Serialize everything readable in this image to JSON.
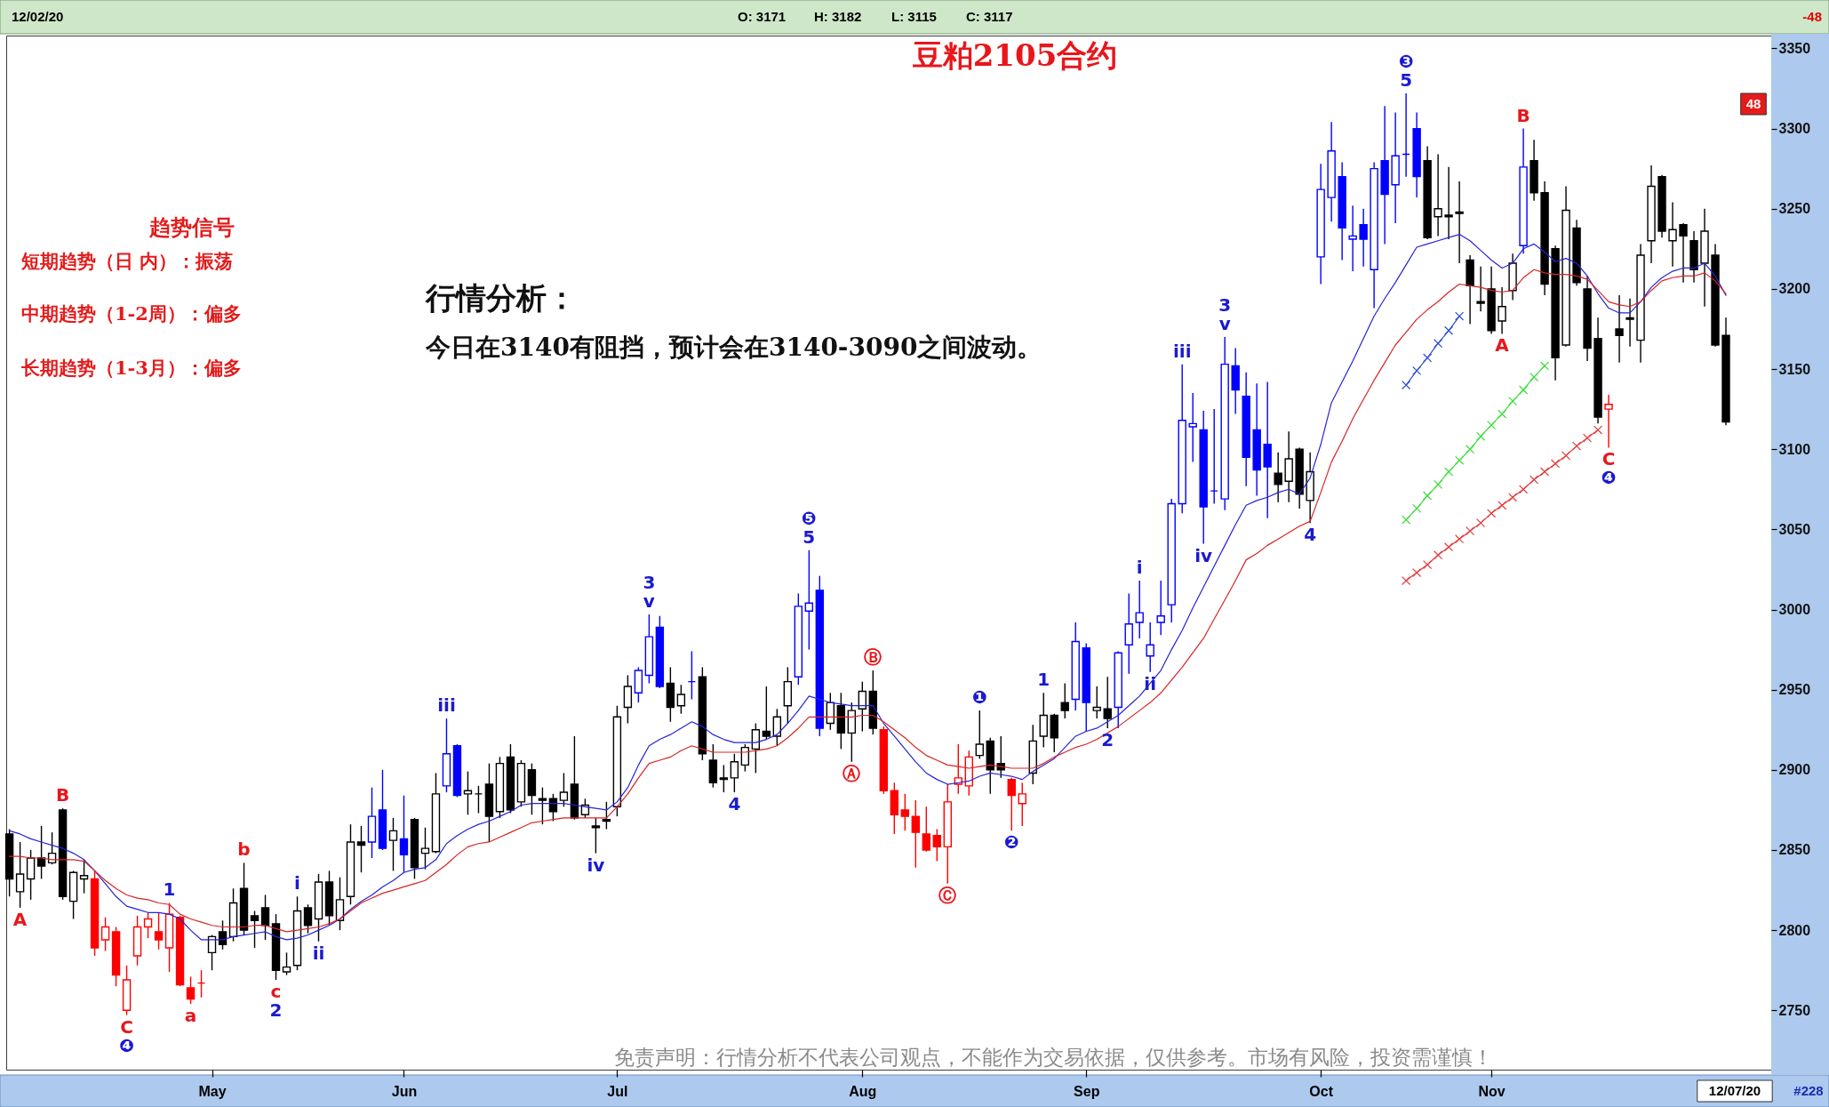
{
  "chart_data": {
    "type": "candlestick",
    "title": "豆粕2105合约",
    "categories": [
      null,
      null,
      null,
      null,
      null,
      null,
      null,
      null,
      null,
      null,
      null,
      null,
      null,
      null,
      null,
      null,
      null,
      null,
      null,
      "May",
      null,
      null,
      null,
      null,
      null,
      null,
      null,
      null,
      null,
      null,
      null,
      null,
      null,
      null,
      null,
      null,
      null,
      "Jun",
      null,
      null,
      null,
      null,
      null,
      null,
      null,
      null,
      null,
      null,
      null,
      null,
      null,
      null,
      null,
      null,
      null,
      null,
      null,
      "Jul",
      null,
      null,
      null,
      null,
      null,
      null,
      null,
      null,
      null,
      null,
      null,
      null,
      null,
      null,
      null,
      null,
      null,
      null,
      null,
      null,
      null,
      null,
      "Aug",
      null,
      null,
      null,
      null,
      null,
      null,
      null,
      null,
      null,
      null,
      null,
      null,
      null,
      null,
      null,
      null,
      null,
      null,
      null,
      null,
      "Sep",
      null,
      null,
      null,
      null,
      null,
      null,
      null,
      null,
      null,
      null,
      null,
      null,
      null,
      null,
      null,
      null,
      null,
      null,
      null,
      null,
      null,
      "Oct",
      null,
      null,
      null,
      null,
      null,
      null,
      null,
      null,
      null,
      null,
      null,
      null,
      null,
      null,
      null,
      "Nov",
      null,
      null,
      null,
      null,
      null,
      null,
      null,
      null,
      null,
      null,
      null,
      null,
      null,
      null,
      null,
      null,
      null,
      null,
      null,
      null,
      null,
      null
    ],
    "ohlc": [
      [
        2860,
        2863,
        2821,
        2832
      ],
      [
        2824,
        2855,
        2814,
        2835
      ],
      [
        2832,
        2850,
        2819,
        2845
      ],
      [
        2845,
        2865,
        2832,
        2840
      ],
      [
        2842,
        2861,
        2841,
        2848
      ],
      [
        2875,
        2876,
        2819,
        2821
      ],
      [
        2818,
        2837,
        2807,
        2836
      ],
      [
        2832,
        2844,
        2823,
        2834
      ],
      [
        2832,
        2837,
        2784,
        2789
      ],
      [
        2794,
        2808,
        2787,
        2802
      ],
      [
        2799,
        2802,
        2765,
        2772
      ],
      [
        2750,
        2778,
        2747,
        2769
      ],
      [
        2784,
        2809,
        2778,
        2802
      ],
      [
        2802,
        2811,
        2795,
        2807
      ],
      [
        2799,
        2811,
        2788,
        2794
      ],
      [
        2789,
        2817,
        2774,
        2810
      ],
      [
        2808,
        2809,
        2765,
        2766
      ],
      [
        2764,
        2771,
        2754,
        2757
      ],
      [
        2767,
        2775,
        2758,
        2767
      ],
      [
        2786,
        2797,
        2775,
        2796
      ],
      [
        2799,
        2806,
        2788,
        2791
      ],
      [
        2796,
        2826,
        2793,
        2817
      ],
      [
        2826,
        2842,
        2797,
        2800
      ],
      [
        2809,
        2812,
        2789,
        2806
      ],
      [
        2814,
        2822,
        2794,
        2803
      ],
      [
        2804,
        2810,
        2769,
        2775
      ],
      [
        2774,
        2786,
        2772,
        2777
      ],
      [
        2778,
        2821,
        2775,
        2812
      ],
      [
        2814,
        2816,
        2798,
        2803
      ],
      [
        2807,
        2835,
        2793,
        2830
      ],
      [
        2830,
        2837,
        2803,
        2809
      ],
      [
        2806,
        2833,
        2800,
        2819
      ],
      [
        2821,
        2866,
        2816,
        2855
      ],
      [
        2855,
        2865,
        2836,
        2853
      ],
      [
        2855,
        2889,
        2845,
        2871
      ],
      [
        2875,
        2900,
        2850,
        2851
      ],
      [
        2856,
        2870,
        2837,
        2862
      ],
      [
        2857,
        2884,
        2836,
        2847
      ],
      [
        2869,
        2870,
        2832,
        2839
      ],
      [
        2848,
        2864,
        2838,
        2851
      ],
      [
        2849,
        2898,
        2848,
        2885
      ],
      [
        2890,
        2932,
        2886,
        2910
      ],
      [
        2915,
        2916,
        2883,
        2884
      ],
      [
        2885,
        2899,
        2872,
        2887
      ],
      [
        2885,
        2890,
        2873,
        2885
      ],
      [
        2891,
        2904,
        2855,
        2871
      ],
      [
        2874,
        2908,
        2870,
        2904
      ],
      [
        2908,
        2916,
        2873,
        2875
      ],
      [
        2880,
        2906,
        2877,
        2904
      ],
      [
        2900,
        2904,
        2872,
        2884
      ],
      [
        2882,
        2889,
        2866,
        2881
      ],
      [
        2882,
        2885,
        2868,
        2874
      ],
      [
        2881,
        2898,
        2877,
        2886
      ],
      [
        2891,
        2921,
        2869,
        2870
      ],
      [
        2872,
        2882,
        2870,
        2878
      ],
      [
        2865,
        2870,
        2848,
        2864
      ],
      [
        2869,
        2880,
        2863,
        2868
      ],
      [
        2877,
        2940,
        2871,
        2933
      ],
      [
        2939,
        2959,
        2929,
        2952
      ],
      [
        2948,
        2964,
        2942,
        2962
      ],
      [
        2959,
        2997,
        2954,
        2983
      ],
      [
        2989,
        2996,
        2951,
        2952
      ],
      [
        2954,
        2964,
        2930,
        2939
      ],
      [
        2940,
        2953,
        2935,
        2947
      ],
      [
        2955,
        2974,
        2944,
        2955
      ],
      [
        2958,
        2964,
        2906,
        2910
      ],
      [
        2906,
        2916,
        2889,
        2892
      ],
      [
        2895,
        2903,
        2886,
        2894
      ],
      [
        2895,
        2910,
        2886,
        2905
      ],
      [
        2903,
        2916,
        2899,
        2914
      ],
      [
        2913,
        2929,
        2898,
        2925
      ],
      [
        2924,
        2952,
        2919,
        2921
      ],
      [
        2921,
        2938,
        2915,
        2933
      ],
      [
        2940,
        2964,
        2929,
        2955
      ],
      [
        2958,
        3010,
        2953,
        3002
      ],
      [
        2999,
        3037,
        2975,
        3004
      ],
      [
        3012,
        3021,
        2921,
        2926
      ],
      [
        2929,
        2948,
        2925,
        2942
      ],
      [
        2940,
        2948,
        2913,
        2923
      ],
      [
        2923,
        2942,
        2905,
        2937
      ],
      [
        2938,
        2955,
        2924,
        2949
      ],
      [
        2949,
        2962,
        2922,
        2926
      ],
      [
        2925,
        2927,
        2885,
        2887
      ],
      [
        2887,
        2892,
        2860,
        2872
      ],
      [
        2875,
        2885,
        2862,
        2871
      ],
      [
        2871,
        2881,
        2839,
        2861
      ],
      [
        2860,
        2877,
        2849,
        2850
      ],
      [
        2859,
        2863,
        2843,
        2852
      ],
      [
        2852,
        2891,
        2829,
        2880
      ],
      [
        2891,
        2916,
        2885,
        2895
      ],
      [
        2890,
        2912,
        2884,
        2908
      ],
      [
        2909,
        2937,
        2907,
        2916
      ],
      [
        2918,
        2920,
        2885,
        2900
      ],
      [
        2904,
        2921,
        2895,
        2900
      ],
      [
        2894,
        2895,
        2862,
        2884
      ],
      [
        2879,
        2892,
        2865,
        2885
      ],
      [
        2898,
        2928,
        2891,
        2918
      ],
      [
        2921,
        2948,
        2914,
        2934
      ],
      [
        2934,
        2935,
        2911,
        2920
      ],
      [
        2942,
        2954,
        2932,
        2937
      ],
      [
        2944,
        2992,
        2937,
        2980
      ],
      [
        2976,
        2979,
        2924,
        2942
      ],
      [
        2937,
        2952,
        2932,
        2939
      ],
      [
        2938,
        2958,
        2926,
        2932
      ],
      [
        2939,
        2974,
        2926,
        2973
      ],
      [
        2978,
        3010,
        2960,
        2991
      ],
      [
        2992,
        3018,
        2982,
        2998
      ],
      [
        2971,
        2992,
        2961,
        2978
      ],
      [
        2992,
        3018,
        2984,
        2996
      ],
      [
        3003,
        3069,
        2992,
        3066
      ],
      [
        3066,
        3153,
        3060,
        3118
      ],
      [
        3114,
        3135,
        3092,
        3116
      ],
      [
        3112,
        3124,
        3041,
        3064
      ],
      [
        3074,
        3125,
        3066,
        3074
      ],
      [
        3069,
        3170,
        3062,
        3153
      ],
      [
        3152,
        3163,
        3122,
        3137
      ],
      [
        3133,
        3148,
        3077,
        3095
      ],
      [
        3112,
        3141,
        3071,
        3087
      ],
      [
        3103,
        3142,
        3057,
        3089
      ],
      [
        3085,
        3098,
        3067,
        3078
      ],
      [
        3080,
        3111,
        3067,
        3094
      ],
      [
        3100,
        3101,
        3063,
        3072
      ],
      [
        3068,
        3098,
        3054,
        3086
      ],
      [
        3220,
        3278,
        3203,
        3262
      ],
      [
        3257,
        3304,
        3242,
        3286
      ],
      [
        3270,
        3279,
        3218,
        3238
      ],
      [
        3231,
        3252,
        3211,
        3233
      ],
      [
        3240,
        3250,
        3214,
        3231
      ],
      [
        3212,
        3279,
        3188,
        3275
      ],
      [
        3280,
        3314,
        3228,
        3259
      ],
      [
        3265,
        3310,
        3241,
        3283
      ],
      [
        3284,
        3322,
        3270,
        3284
      ],
      [
        3300,
        3310,
        3257,
        3270
      ],
      [
        3280,
        3289,
        3231,
        3232
      ],
      [
        3245,
        3284,
        3233,
        3250
      ],
      [
        3246,
        3276,
        3231,
        3245
      ],
      [
        3248,
        3267,
        3216,
        3247
      ],
      [
        3218,
        3221,
        3178,
        3202
      ],
      [
        3192,
        3214,
        3186,
        3191
      ],
      [
        3200,
        3214,
        3172,
        3174
      ],
      [
        3180,
        3201,
        3172,
        3189
      ],
      [
        3199,
        3222,
        3193,
        3216
      ],
      [
        3227,
        3300,
        3222,
        3276
      ],
      [
        3280,
        3293,
        3255,
        3260
      ],
      [
        3260,
        3267,
        3196,
        3203
      ],
      [
        3225,
        3227,
        3143,
        3157
      ],
      [
        3165,
        3264,
        3164,
        3249
      ],
      [
        3238,
        3243,
        3202,
        3204
      ],
      [
        3200,
        3208,
        3155,
        3163
      ],
      [
        3169,
        3182,
        3116,
        3120
      ],
      [
        3125,
        3134,
        3101,
        3128
      ],
      [
        3175,
        3196,
        3154,
        3171
      ],
      [
        3182,
        3194,
        3164,
        3181
      ],
      [
        3168,
        3228,
        3154,
        3221
      ],
      [
        3230,
        3277,
        3216,
        3264
      ],
      [
        3270,
        3271,
        3232,
        3236
      ],
      [
        3230,
        3254,
        3214,
        3237
      ],
      [
        3240,
        3241,
        3204,
        3233
      ],
      [
        3230,
        3236,
        3204,
        3212
      ],
      [
        3216,
        3250,
        3189,
        3236
      ],
      [
        3221,
        3228,
        3164,
        3165
      ],
      [
        3171,
        3182,
        3115,
        3117
      ]
    ],
    "colors": [
      "#000000",
      "#000000",
      "#000000",
      "#000000",
      "#000000",
      "#000000",
      "#000000",
      "#000000",
      "#ff0000",
      "#ff0000",
      "#ff0000",
      "#ff0000",
      "#ff0000",
      "#ff0000",
      "#ff0000",
      "#ff0000",
      "#ff0000",
      "#ff0000",
      "#ff0000",
      "#000000",
      "#000000",
      "#000000",
      "#000000",
      "#000000",
      "#000000",
      "#000000",
      "#000000",
      "#000000",
      "#000000",
      "#000000",
      "#000000",
      "#000000",
      "#000000",
      "#000000",
      "#0000ff",
      "#0000ff",
      "#000000",
      "#0000ff",
      "#000000",
      "#000000",
      "#000000",
      "#0000ff",
      "#0000ff",
      "#000000",
      "#000000",
      "#000000",
      "#000000",
      "#000000",
      "#000000",
      "#000000",
      "#000000",
      "#000000",
      "#000000",
      "#000000",
      "#000000",
      "#000000",
      "#000000",
      "#000000",
      "#000000",
      "#0000ff",
      "#0000ff",
      "#0000ff",
      "#000000",
      "#000000",
      "#0000ff",
      "#000000",
      "#000000",
      "#000000",
      "#000000",
      "#000000",
      "#000000",
      "#000000",
      "#000000",
      "#000000",
      "#0000ff",
      "#0000ff",
      "#0000ff",
      "#000000",
      "#000000",
      "#000000",
      "#000000",
      "#000000",
      "#ff0000",
      "#ff0000",
      "#ff0000",
      "#ff0000",
      "#ff0000",
      "#ff0000",
      "#ff0000",
      "#ff0000",
      "#ff0000",
      "#000000",
      "#000000",
      "#000000",
      "#ff0000",
      "#ff0000",
      "#000000",
      "#000000",
      "#000000",
      "#000000",
      "#0000ff",
      "#0000ff",
      "#000000",
      "#000000",
      "#0000ff",
      "#0000ff",
      "#0000ff",
      "#0000ff",
      "#0000ff",
      "#0000ff",
      "#0000ff",
      "#0000ff",
      "#0000ff",
      "#0000ff",
      "#0000ff",
      "#0000ff",
      "#0000ff",
      "#0000ff",
      "#0000ff",
      "#000000",
      "#000000",
      "#000000",
      "#000000",
      "#0000ff",
      "#0000ff",
      "#0000ff",
      "#0000ff",
      "#0000ff",
      "#0000ff",
      "#0000ff",
      "#0000ff",
      "#0000ff",
      "#0000ff",
      "#000000",
      "#000000",
      "#000000",
      "#000000",
      "#000000",
      "#000000",
      "#000000",
      "#000000",
      "#000000",
      "#0000ff",
      "#000000",
      "#000000",
      "#000000",
      "#000000",
      "#000000",
      "#000000",
      "#000000",
      "#ff0000",
      "#000000",
      "#000000",
      "#000000",
      "#000000",
      "#000000",
      "#000000",
      "#000000",
      "#000000",
      "#000000",
      "#000000",
      "#000000"
    ],
    "ylim": [
      2713,
      3358
    ],
    "yticks": [
      2750,
      2800,
      2850,
      2900,
      2950,
      3000,
      3050,
      3100,
      3150,
      3200,
      3250,
      3300,
      3350
    ],
    "series": [
      {
        "type": "line",
        "color": "#2424d8",
        "values": [
          2862,
          2860,
          2857,
          2855,
          2853,
          2851,
          2848,
          2844,
          2837,
          2829,
          2821,
          2815,
          2813,
          2811,
          2811,
          2810,
          2807,
          2800,
          2794,
          2794,
          2794,
          2796,
          2797,
          2798,
          2799,
          2796,
          2794,
          2795,
          2797,
          2800,
          2803,
          2807,
          2813,
          2818,
          2822,
          2827,
          2831,
          2836,
          2838,
          2839,
          2844,
          2854,
          2859,
          2863,
          2866,
          2868,
          2871,
          2874,
          2878,
          2879,
          2879,
          2879,
          2879,
          2878,
          2877,
          2876,
          2875,
          2880,
          2889,
          2903,
          2915,
          2919,
          2922,
          2926,
          2930,
          2927,
          2922,
          2919,
          2917,
          2917,
          2917,
          2919,
          2922,
          2929,
          2937,
          2946,
          2944,
          2942,
          2941,
          2940,
          2940,
          2940,
          2929,
          2921,
          2913,
          2905,
          2898,
          2894,
          2891,
          2892,
          2893,
          2896,
          2898,
          2897,
          2896,
          2894,
          2899,
          2903,
          2907,
          2914,
          2921,
          2924,
          2926,
          2930,
          2934,
          2940,
          2946,
          2954,
          2962,
          2975,
          2987,
          3001,
          3014,
          3027,
          3040,
          3053,
          3065,
          3068,
          3070,
          3073,
          3075,
          3072,
          3082,
          3103,
          3129,
          3142,
          3155,
          3169,
          3183,
          3194,
          3204,
          3215,
          3226,
          3228,
          3230,
          3232,
          3234,
          3230,
          3224,
          3218,
          3213,
          3216,
          3225,
          3228,
          3223,
          3217,
          3219,
          3216,
          3208,
          3197,
          3188,
          3185,
          3185,
          3192,
          3201,
          3207,
          3211,
          3213,
          3213,
          3216,
          3208,
          3196
        ]
      },
      {
        "type": "line",
        "color": "#d82424",
        "values": [
          2846,
          2846,
          2845,
          2845,
          2844,
          2844,
          2844,
          2843,
          2837,
          2831,
          2826,
          2822,
          2820,
          2819,
          2817,
          2816,
          2810,
          2807,
          2805,
          2803,
          2802,
          2802,
          2802,
          2803,
          2803,
          2801,
          2799,
          2800,
          2801,
          2802,
          2804,
          2807,
          2812,
          2817,
          2820,
          2823,
          2825,
          2827,
          2829,
          2831,
          2836,
          2841,
          2847,
          2852,
          2854,
          2855,
          2858,
          2861,
          2864,
          2867,
          2868,
          2869,
          2870,
          2870,
          2870,
          2870,
          2870,
          2877,
          2885,
          2895,
          2904,
          2906,
          2908,
          2912,
          2915,
          2913,
          2911,
          2911,
          2911,
          2911,
          2912,
          2913,
          2915,
          2920,
          2926,
          2933,
          2933,
          2933,
          2933,
          2933,
          2934,
          2934,
          2930,
          2925,
          2920,
          2914,
          2909,
          2906,
          2903,
          2902,
          2901,
          2902,
          2903,
          2902,
          2901,
          2901,
          2901,
          2904,
          2908,
          2911,
          2914,
          2916,
          2919,
          2923,
          2927,
          2932,
          2937,
          2942,
          2948,
          2956,
          2964,
          2973,
          2982,
          2994,
          3006,
          3018,
          3031,
          3035,
          3040,
          3044,
          3048,
          3052,
          3055,
          3073,
          3092,
          3105,
          3119,
          3131,
          3143,
          3154,
          3165,
          3173,
          3181,
          3187,
          3192,
          3198,
          3203,
          3202,
          3201,
          3199,
          3198,
          3199,
          3207,
          3212,
          3210,
          3209,
          3209,
          3208,
          3206,
          3199,
          3192,
          3190,
          3189,
          3192,
          3199,
          3205,
          3207,
          3208,
          3208,
          3210,
          3205,
          3197
        ]
      },
      {
        "type": "line",
        "color": "#2f4fd0",
        "marker": "cross",
        "values": [
          null,
          null,
          null,
          null,
          null,
          null,
          null,
          null,
          null,
          null,
          null,
          null,
          null,
          null,
          null,
          null,
          null,
          null,
          null,
          null,
          null,
          null,
          null,
          null,
          null,
          null,
          null,
          null,
          null,
          null,
          null,
          null,
          null,
          null,
          null,
          null,
          null,
          null,
          null,
          null,
          null,
          null,
          null,
          null,
          null,
          null,
          null,
          null,
          null,
          null,
          null,
          null,
          null,
          null,
          null,
          null,
          null,
          null,
          null,
          null,
          null,
          null,
          null,
          null,
          null,
          null,
          null,
          null,
          null,
          null,
          null,
          null,
          null,
          null,
          null,
          null,
          null,
          null,
          null,
          null,
          null,
          null,
          null,
          null,
          null,
          null,
          null,
          null,
          null,
          null,
          null,
          null,
          null,
          null,
          null,
          null,
          null,
          null,
          null,
          null,
          null,
          null,
          null,
          null,
          null,
          null,
          null,
          null,
          null,
          null,
          null,
          null,
          null,
          null,
          null,
          null,
          null,
          null,
          null,
          null,
          null,
          null,
          null,
          null,
          null,
          null,
          null,
          null,
          null,
          null,
          null,
          3140,
          3149,
          3157,
          3166,
          3174,
          3183,
          null,
          null,
          null,
          null,
          null,
          null,
          null,
          null,
          null,
          null,
          null,
          null,
          null,
          null,
          null,
          null,
          null,
          null,
          null,
          null,
          null,
          null,
          null,
          null,
          null
        ]
      },
      {
        "type": "line",
        "color": "#3cdc3c",
        "marker": "cross",
        "values": [
          null,
          null,
          null,
          null,
          null,
          null,
          null,
          null,
          null,
          null,
          null,
          null,
          null,
          null,
          null,
          null,
          null,
          null,
          null,
          null,
          null,
          null,
          null,
          null,
          null,
          null,
          null,
          null,
          null,
          null,
          null,
          null,
          null,
          null,
          null,
          null,
          null,
          null,
          null,
          null,
          null,
          null,
          null,
          null,
          null,
          null,
          null,
          null,
          null,
          null,
          null,
          null,
          null,
          null,
          null,
          null,
          null,
          null,
          null,
          null,
          null,
          null,
          null,
          null,
          null,
          null,
          null,
          null,
          null,
          null,
          null,
          null,
          null,
          null,
          null,
          null,
          null,
          null,
          null,
          null,
          null,
          null,
          null,
          null,
          null,
          null,
          null,
          null,
          null,
          null,
          null,
          null,
          null,
          null,
          null,
          null,
          null,
          null,
          null,
          null,
          null,
          null,
          null,
          null,
          null,
          null,
          null,
          null,
          null,
          null,
          null,
          null,
          null,
          null,
          null,
          null,
          null,
          null,
          null,
          null,
          null,
          null,
          null,
          null,
          null,
          null,
          null,
          null,
          null,
          null,
          null,
          3056,
          3063,
          3071,
          3078,
          3086,
          3093,
          3100,
          3108,
          3115,
          3122,
          3130,
          3137,
          3145,
          3152,
          null,
          null,
          null,
          null,
          null,
          null,
          null,
          null,
          null,
          null,
          null,
          null,
          null,
          null,
          null,
          null,
          null
        ]
      },
      {
        "type": "line",
        "color": "#e23c3c",
        "marker": "cross",
        "values": [
          null,
          null,
          null,
          null,
          null,
          null,
          null,
          null,
          null,
          null,
          null,
          null,
          null,
          null,
          null,
          null,
          null,
          null,
          null,
          null,
          null,
          null,
          null,
          null,
          null,
          null,
          null,
          null,
          null,
          null,
          null,
          null,
          null,
          null,
          null,
          null,
          null,
          null,
          null,
          null,
          null,
          null,
          null,
          null,
          null,
          null,
          null,
          null,
          null,
          null,
          null,
          null,
          null,
          null,
          null,
          null,
          null,
          null,
          null,
          null,
          null,
          null,
          null,
          null,
          null,
          null,
          null,
          null,
          null,
          null,
          null,
          null,
          null,
          null,
          null,
          null,
          null,
          null,
          null,
          null,
          null,
          null,
          null,
          null,
          null,
          null,
          null,
          null,
          null,
          null,
          null,
          null,
          null,
          null,
          null,
          null,
          null,
          null,
          null,
          null,
          null,
          null,
          null,
          null,
          null,
          null,
          null,
          null,
          null,
          null,
          null,
          null,
          null,
          null,
          null,
          null,
          null,
          null,
          null,
          null,
          null,
          null,
          null,
          null,
          null,
          null,
          null,
          null,
          null,
          null,
          null,
          3018,
          3023,
          3028,
          3034,
          3039,
          3044,
          3049,
          3054,
          3060,
          3065,
          3070,
          3075,
          3081,
          3086,
          3091,
          3096,
          3102,
          3107,
          3112,
          null,
          null,
          null,
          null,
          null,
          null,
          null,
          null,
          null,
          null,
          null,
          null
        ]
      }
    ],
    "annotations": [
      "12/02/20",
      "O: 3171",
      "H: 3182",
      "L: 3115",
      "C: 3117",
      "-48",
      "48",
      "趋势信号",
      "短期趋势（日 内）：振荡",
      "中期趋势（1-2周）：偏多",
      "长期趋势（1-3月）：偏多",
      "行情分析：",
      "今日在3140有阻挡，预计会在3140-3090之间波动。",
      "免责声明：行情分析不代表公司观点，不能作为交易依据，仅供参考。市场有风险，投资需谨慎！",
      "12/07/20",
      "#228",
      "A",
      "B",
      "C",
      "❹",
      "1",
      "a",
      "b",
      "c",
      "2",
      "i",
      "ii",
      "iii",
      "iv",
      "v",
      "3",
      "4",
      "5",
      "❺",
      "Ⓐ",
      "Ⓑ",
      "Ⓒ",
      "❶",
      "❷",
      "1",
      "2",
      "i",
      "ii",
      "iii",
      "iv",
      "v",
      "3",
      "4",
      "5",
      "❸",
      "A",
      "B",
      "C",
      "❹"
    ]
  }
}
